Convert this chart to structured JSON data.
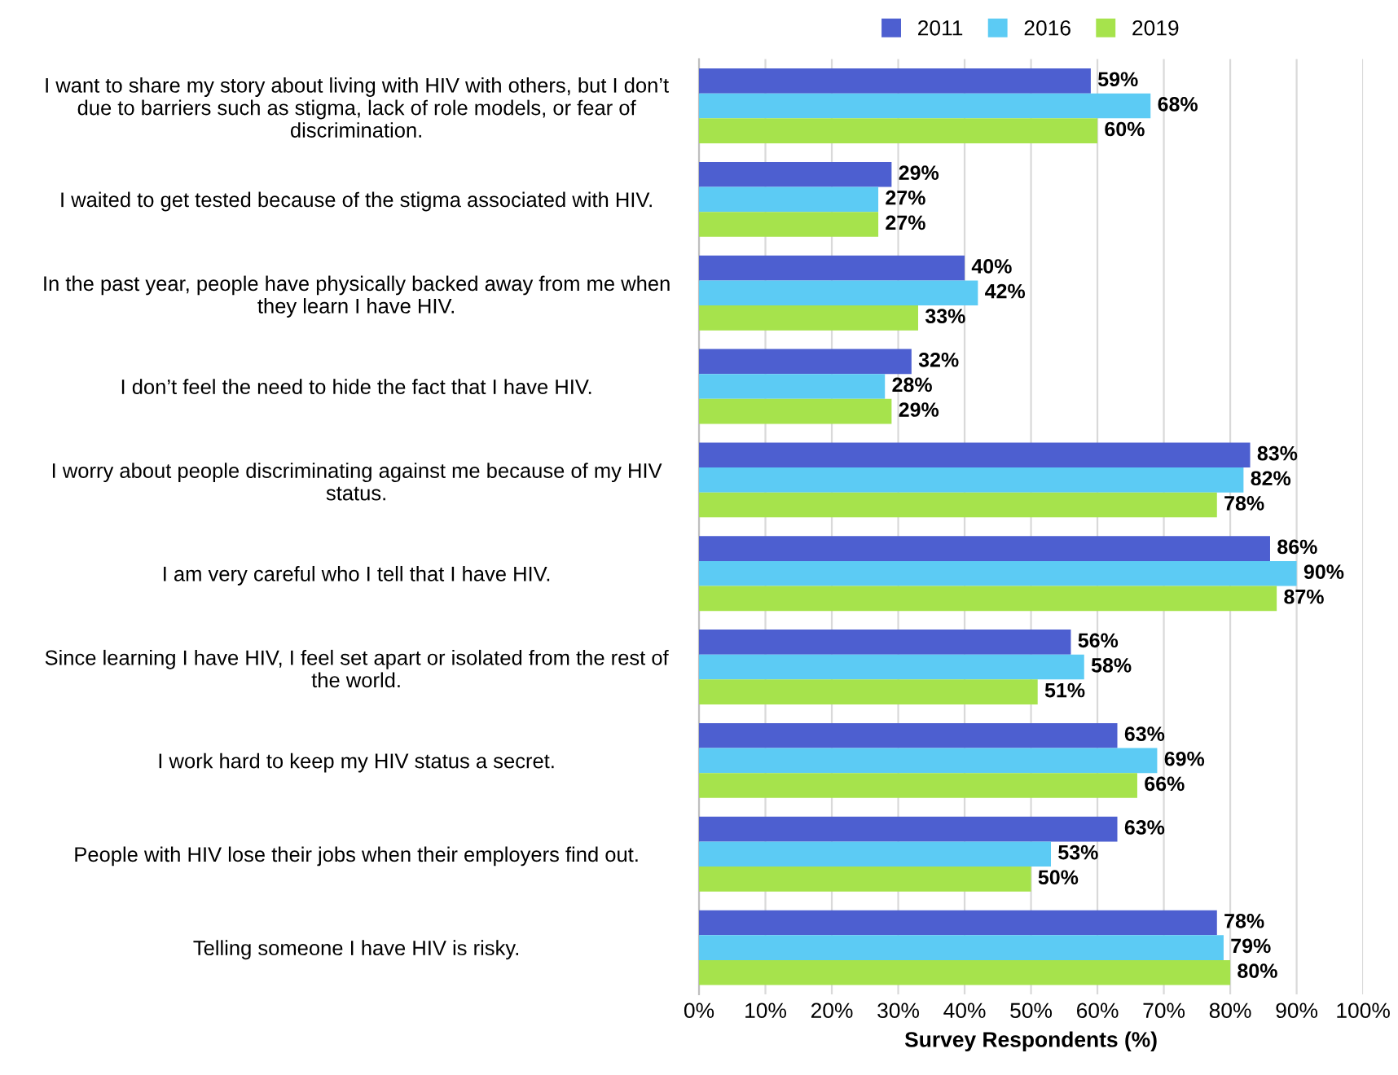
{
  "chart_data": {
    "type": "bar",
    "orientation": "horizontal",
    "categories": [
      "I want to share my story about living with HIV with others, but I don’t\ndue to barriers such as stigma, lack of role models, or fear of\ndiscrimination.",
      "I waited to get tested because of the stigma associated with HIV.",
      "In the past year, people have physically backed away from me when\nthey learn I have HIV.",
      "I don’t feel the need to hide the fact that I have HIV.",
      "I worry about people discriminating against me because of my HIV\nstatus.",
      "I am very careful who I tell that I have HIV.",
      "Since learning I have HIV, I feel set apart or isolated from the rest of\nthe world.",
      "I work hard to keep my HIV status a secret.",
      "People with HIV lose their jobs when their employers find out.",
      "Telling someone I have HIV is risky."
    ],
    "series": [
      {
        "name": "2011",
        "color": "#4d5fd0",
        "values": [
          59,
          29,
          40,
          32,
          83,
          86,
          56,
          63,
          63,
          78
        ],
        "value_labels": [
          "59%",
          "29%",
          "40%",
          "32%",
          "83%",
          "86%",
          "56%",
          "63%",
          "63%",
          "78%"
        ]
      },
      {
        "name": "2016",
        "color": "#5ccbf4",
        "values": [
          68,
          27,
          42,
          28,
          82,
          90,
          58,
          69,
          53,
          79
        ],
        "value_labels": [
          "68%",
          "27%",
          "42%",
          "28%",
          "82%",
          "90%",
          "58%",
          "69%",
          "53%",
          "79%"
        ]
      },
      {
        "name": "2019",
        "color": "#a6e34c",
        "values": [
          60,
          27,
          33,
          29,
          78,
          87,
          51,
          66,
          50,
          80
        ],
        "value_labels": [
          "60%",
          "27%",
          "33%",
          "29%",
          "78%",
          "87%",
          "51%",
          "66%",
          "50%",
          "80%"
        ]
      }
    ],
    "xlabel": "Survey Respondents (%)",
    "xlim": [
      0,
      100
    ],
    "xticks": [
      {
        "value": 0,
        "label": "0%"
      },
      {
        "value": 10,
        "label": "10%"
      },
      {
        "value": 20,
        "label": "20%"
      },
      {
        "value": 30,
        "label": "30%"
      },
      {
        "value": 40,
        "label": "40%"
      },
      {
        "value": 50,
        "label": "50%"
      },
      {
        "value": 60,
        "label": "60%"
      },
      {
        "value": 70,
        "label": "70%"
      },
      {
        "value": 80,
        "label": "80%"
      },
      {
        "value": 90,
        "label": "90%"
      },
      {
        "value": 100,
        "label": "100%"
      }
    ],
    "grid": "x",
    "legend": "top"
  }
}
